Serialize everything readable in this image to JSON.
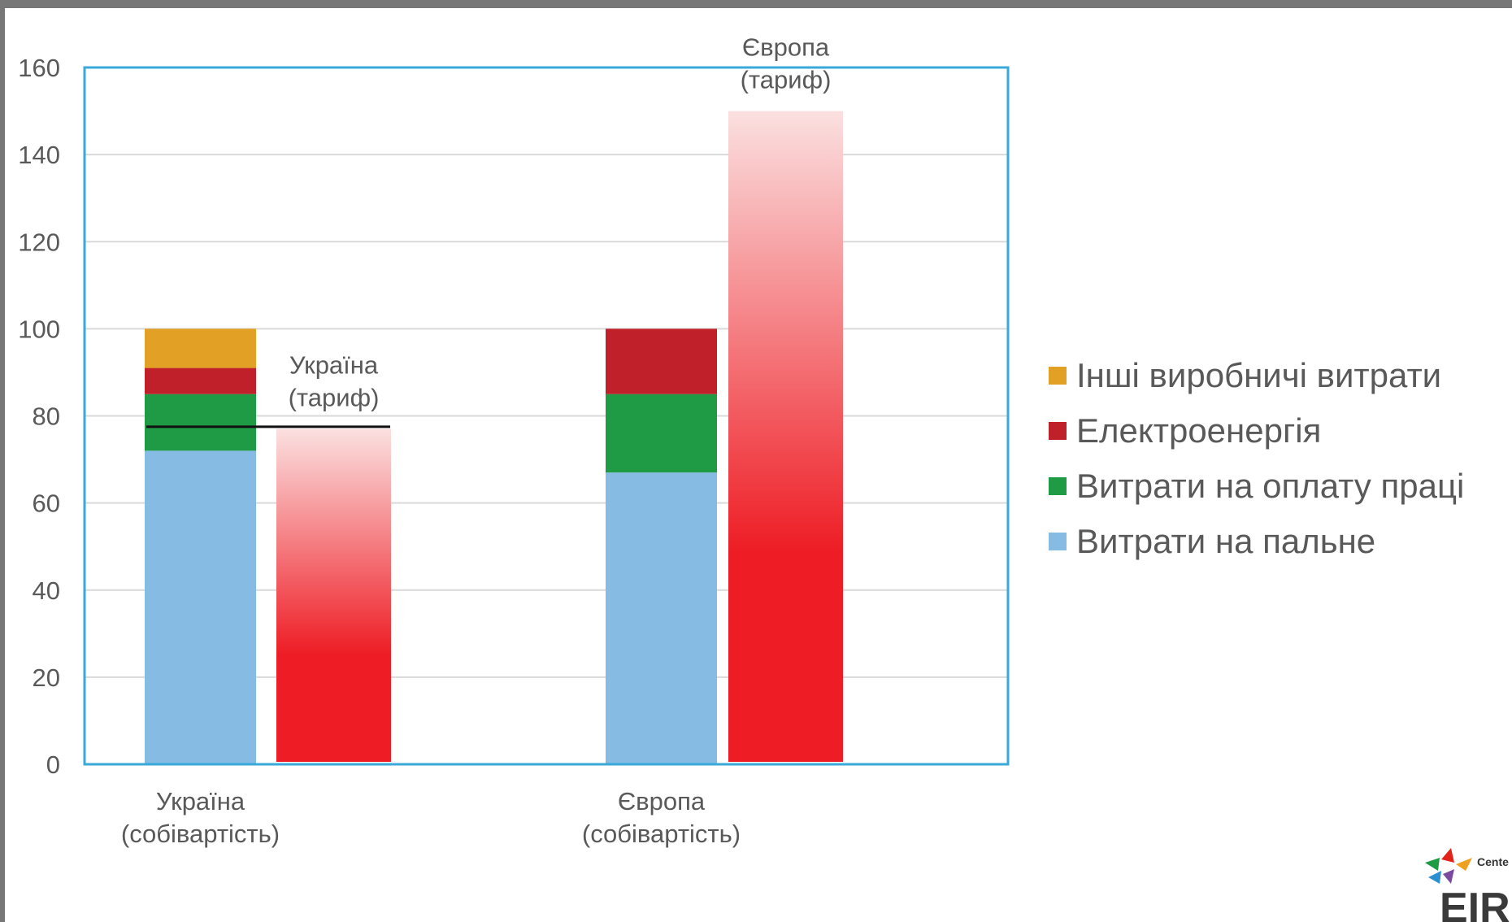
{
  "chart_data": {
    "type": "bar",
    "ylim": [
      0,
      160
    ],
    "yticks": [
      0,
      20,
      40,
      60,
      80,
      100,
      120,
      140,
      160
    ],
    "stacked_bars": [
      {
        "category": [
          "Україна",
          "(собівартість)"
        ],
        "segments": [
          {
            "series": "Витрати на пальне",
            "value": 72
          },
          {
            "series": "Витрати на оплату праці",
            "value": 13
          },
          {
            "series": "Електроенергія",
            "value": 6
          },
          {
            "series": "Інші виробничі витрати",
            "value": 9
          }
        ]
      },
      {
        "category": [
          "Європа",
          "(собівартість)"
        ],
        "segments": [
          {
            "series": "Витрати на пальне",
            "value": 67
          },
          {
            "series": "Витрати на оплату праці",
            "value": 18
          },
          {
            "series": "Електроенергія",
            "value": 15
          }
        ]
      }
    ],
    "tariff_bars": [
      {
        "label": [
          "Україна",
          "(тариф)"
        ],
        "value": 77,
        "reference_line": 77.5
      },
      {
        "label": [
          "Європа",
          "(тариф)"
        ],
        "value": 150
      }
    ],
    "legend": [
      {
        "name": "Інші виробничі витрати",
        "color": "#e2a024"
      },
      {
        "name": "Електроенергія",
        "color": "#c0202a"
      },
      {
        "name": "Витрати на оплату праці",
        "color": "#1f9b46"
      },
      {
        "name": "Витрати на пальне",
        "color": "#86bbe3"
      }
    ],
    "legend_position": "right",
    "grid": true,
    "colors": {
      "Витрати на пальне": "#86bbe3",
      "Витрати на оплату праці": "#1f9b46",
      "Електроенергія": "#c0202a",
      "Інші виробничі витрати": "#e2a024",
      "tariff_top": "#fbe0e0",
      "tariff_bottom": "#ee1c24",
      "frame": "#3aa8d8"
    }
  },
  "logo": {
    "text": "EIR",
    "small_text": "Cente"
  }
}
